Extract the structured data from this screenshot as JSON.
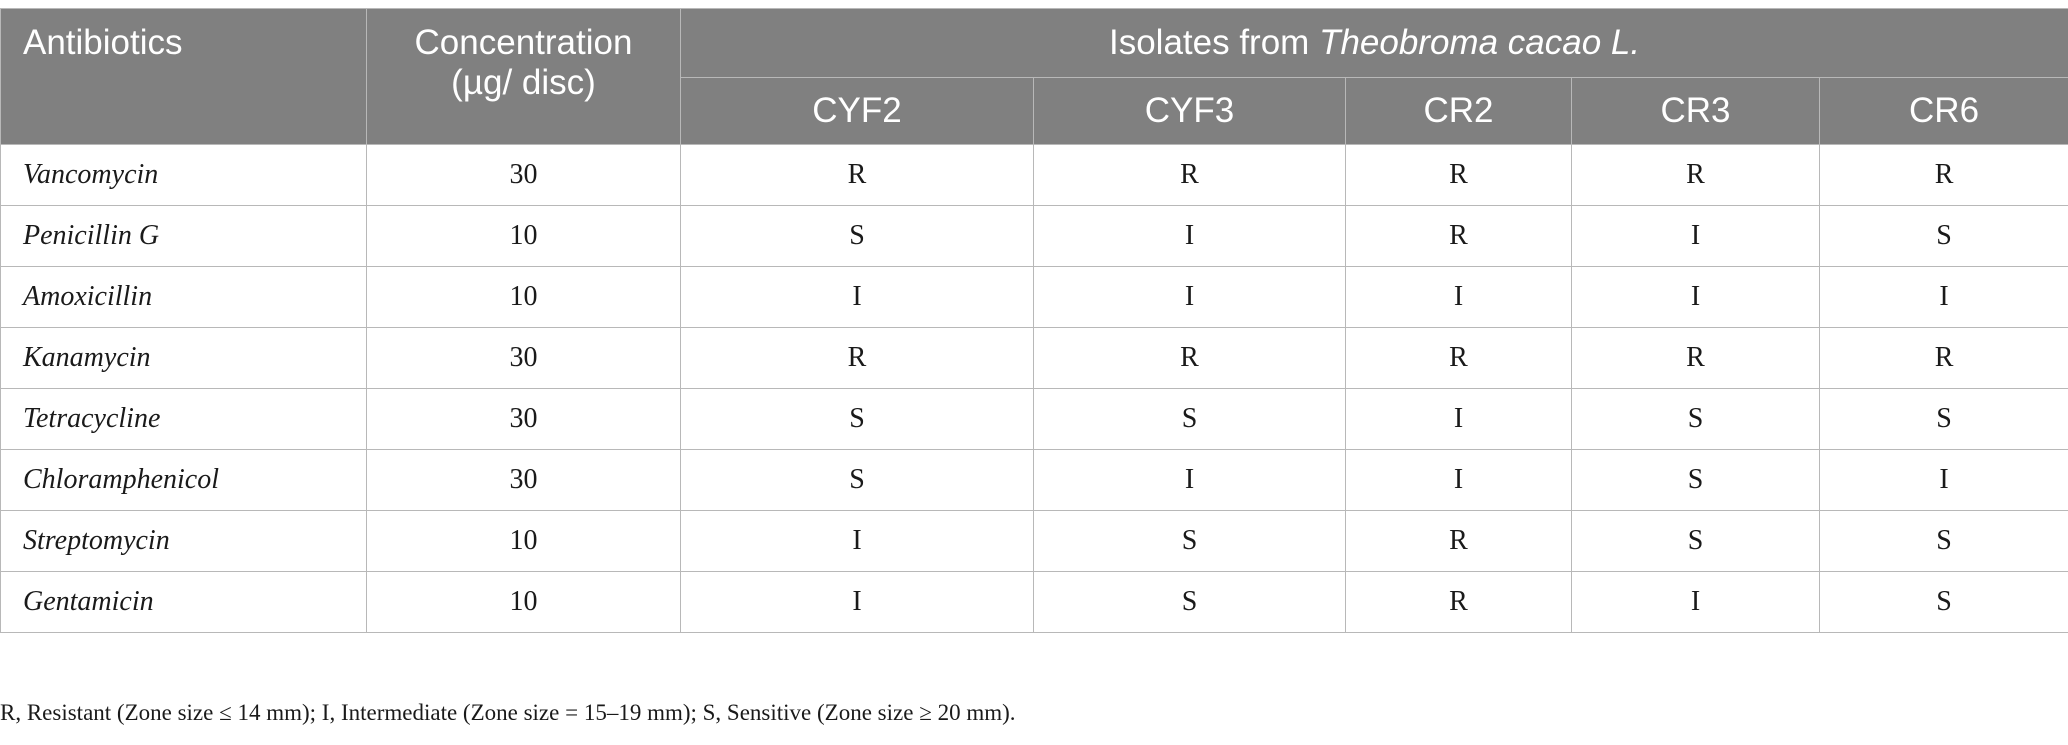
{
  "header": {
    "antibiotics_label": "Antibiotics",
    "concentration_label_line1": "Concentration",
    "concentration_label_line2": "(µg/ disc)",
    "isolates_prefix": "Isolates from ",
    "isolates_species": "Theobroma cacao L.",
    "isolates": [
      "CYF2",
      "CYF3",
      "CR2",
      "CR3",
      "CR6"
    ]
  },
  "rows": [
    {
      "antibiotic": "Vancomycin",
      "concentration": "30",
      "results": [
        "R",
        "R",
        "R",
        "R",
        "R"
      ]
    },
    {
      "antibiotic": "Penicillin G",
      "concentration": "10",
      "results": [
        "S",
        "I",
        "R",
        "I",
        "S"
      ]
    },
    {
      "antibiotic": "Amoxicillin",
      "concentration": "10",
      "results": [
        "I",
        "I",
        "I",
        "I",
        "I"
      ]
    },
    {
      "antibiotic": "Kanamycin",
      "concentration": "30",
      "results": [
        "R",
        "R",
        "R",
        "R",
        "R"
      ]
    },
    {
      "antibiotic": "Tetracycline",
      "concentration": "30",
      "results": [
        "S",
        "S",
        "I",
        "S",
        "S"
      ]
    },
    {
      "antibiotic": "Chloramphenicol",
      "concentration": "30",
      "results": [
        "S",
        "I",
        "I",
        "S",
        "I"
      ]
    },
    {
      "antibiotic": "Streptomycin",
      "concentration": "10",
      "results": [
        "I",
        "S",
        "R",
        "S",
        "S"
      ]
    },
    {
      "antibiotic": "Gentamicin",
      "concentration": "10",
      "results": [
        "I",
        "S",
        "R",
        "I",
        "S"
      ]
    }
  ],
  "footnote": "R, Resistant (Zone size ≤ 14 mm); I, Intermediate (Zone size = 15–19 mm); S, Sensitive (Zone size ≥ 20 mm).",
  "colors": {
    "header_background": "#808080",
    "header_text": "#ffffff",
    "grid_line": "#b8b8b8"
  }
}
